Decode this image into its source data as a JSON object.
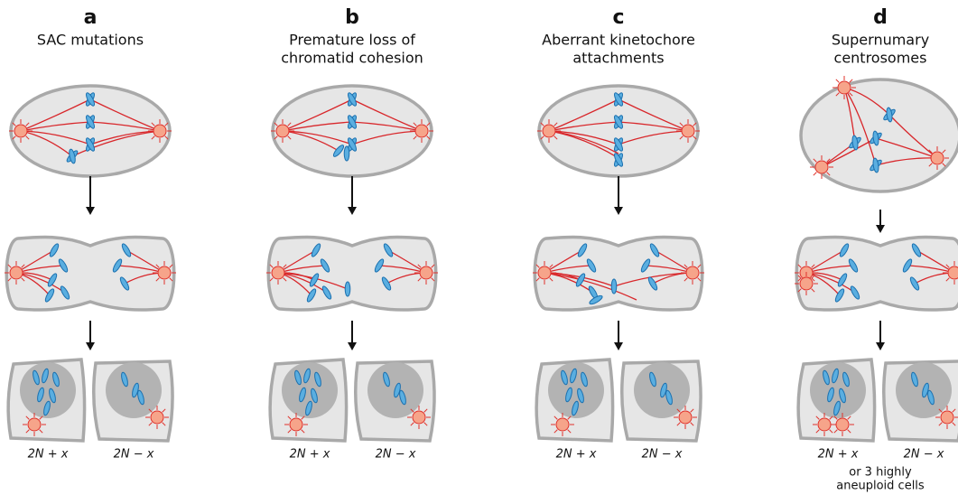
{
  "panels": [
    {
      "letter": "a",
      "title": [
        "SAC mutations"
      ],
      "daughters": [
        "2N + x",
        "2N − x"
      ]
    },
    {
      "letter": "b",
      "title": [
        "Premature loss of",
        "chromatid cohesion"
      ],
      "daughters": [
        "2N + x",
        "2N − x"
      ]
    },
    {
      "letter": "c",
      "title": [
        "Aberrant kinetochore",
        "attachments"
      ],
      "daughters": [
        "2N + x",
        "2N − x"
      ]
    },
    {
      "letter": "d",
      "title": [
        "Supernumary",
        "centrosomes"
      ],
      "daughters": [
        "2N + x",
        "2N − x"
      ],
      "note": [
        "or 3 highly",
        "aneuploid cells"
      ]
    }
  ]
}
